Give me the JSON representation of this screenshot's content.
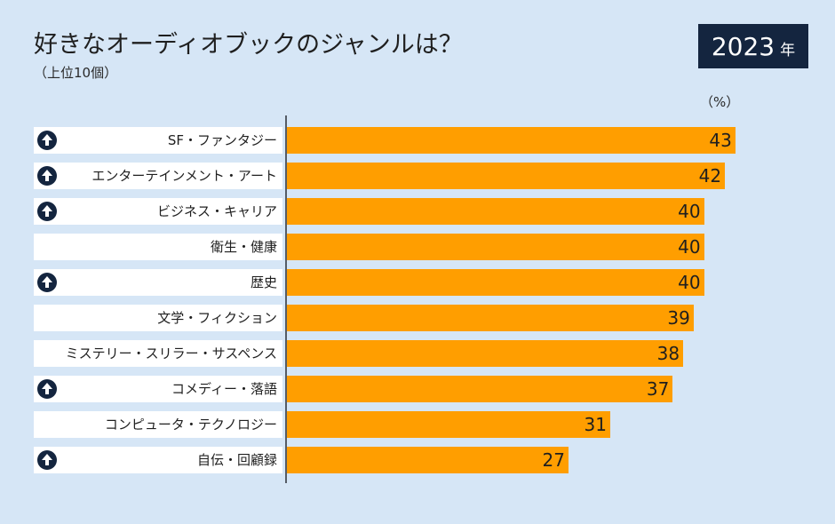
{
  "header": {
    "title": "好きなオーディオブックのジャンルは？",
    "subtitle": "（上位10個）",
    "year": "2023",
    "year_unit": "年",
    "unit_label": "（%）"
  },
  "colors": {
    "bar": "#ff9e00",
    "badge": "#14253f",
    "background": "#d6e6f6"
  },
  "chart_data": {
    "type": "bar",
    "orientation": "horizontal",
    "title": "好きなオーディオブックのジャンルは？",
    "subtitle": "（上位10個）",
    "unit": "%",
    "xlim": [
      0,
      50
    ],
    "categories": [
      "SF・ファンタジー",
      "エンターテインメント・アート",
      "ビジネス・キャリア",
      "衛生・健康",
      "歴史",
      "文学・フィクション",
      "ミステリー・スリラー・サスペンス",
      "コメディー・落語",
      "コンピュータ・テクノロジー",
      "自伝・回顧録"
    ],
    "values": [
      43,
      42,
      40,
      40,
      40,
      39,
      38,
      37,
      31,
      27
    ],
    "rising": [
      true,
      true,
      true,
      false,
      true,
      false,
      false,
      true,
      false,
      true
    ],
    "rising_icon": "arrow-up-circle-icon"
  }
}
